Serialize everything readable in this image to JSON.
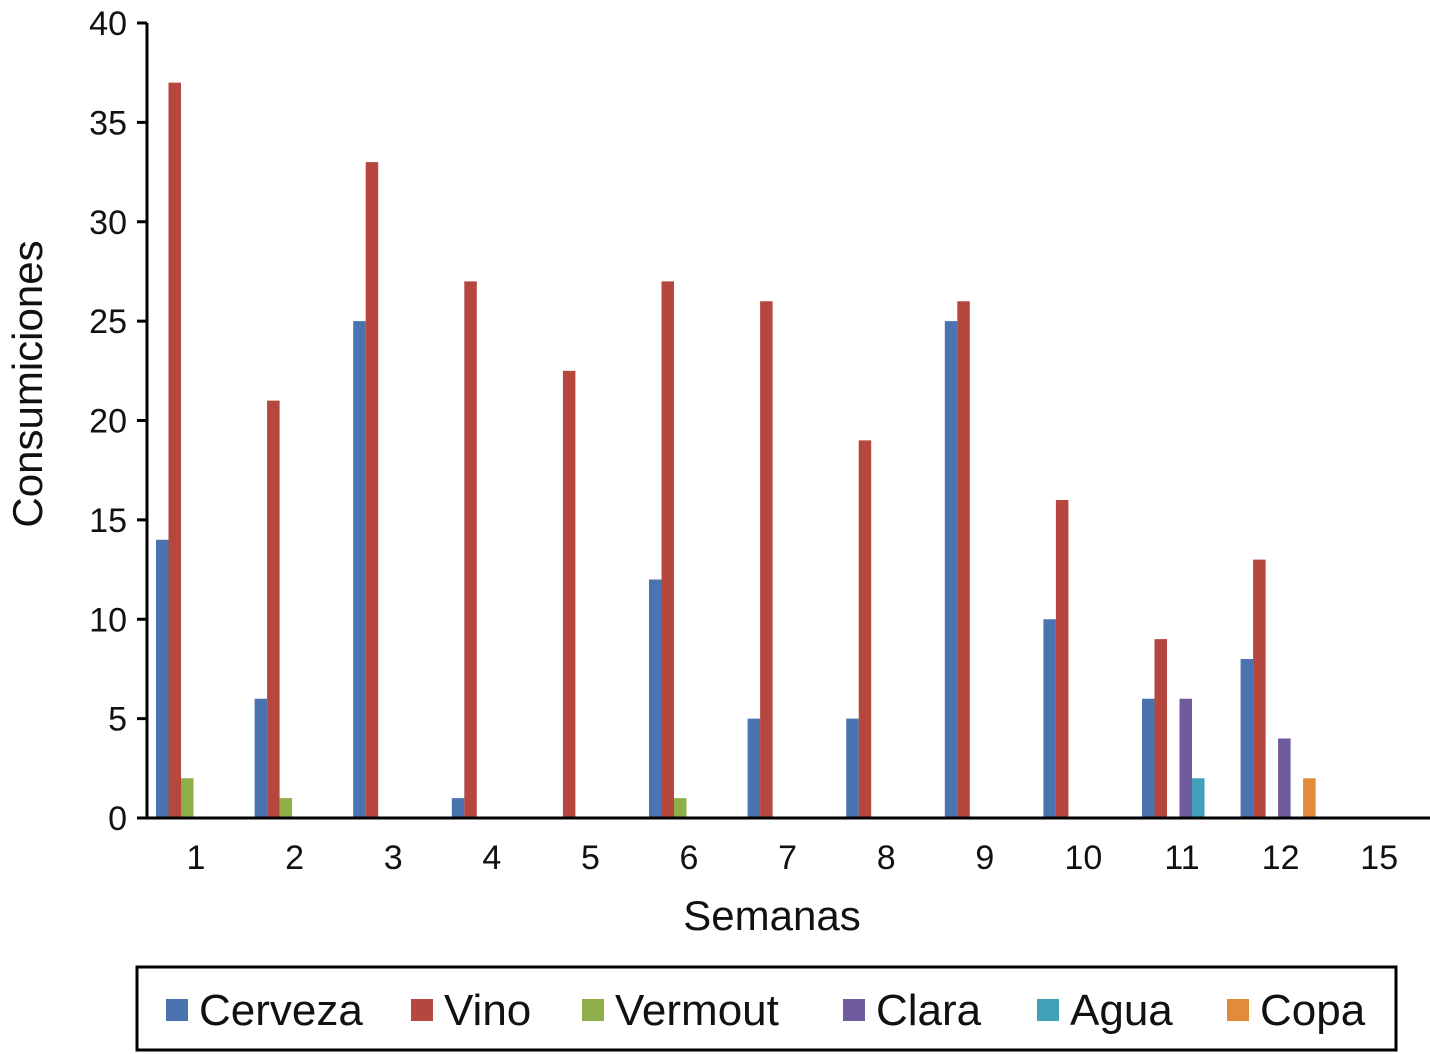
{
  "chart_data": {
    "type": "bar",
    "title": "",
    "xlabel": "Semanas",
    "ylabel": "Consumiciones",
    "categories": [
      "1",
      "2",
      "3",
      "4",
      "5",
      "6",
      "7",
      "8",
      "9",
      "10",
      "11",
      "12",
      "15"
    ],
    "ylim": [
      0,
      40
    ],
    "yticks": [
      "0",
      "5",
      "10",
      "15",
      "20",
      "25",
      "30",
      "35",
      "40"
    ],
    "grid": false,
    "legend_position": "bottom",
    "series": [
      {
        "name": "Cerveza",
        "color": "#4a73b0",
        "values": [
          14,
          6,
          25,
          1,
          0,
          12,
          5,
          5,
          25,
          10,
          6,
          8,
          0
        ]
      },
      {
        "name": "Vino",
        "color": "#b5473f",
        "values": [
          37,
          21,
          33,
          27,
          22.5,
          27,
          26,
          19,
          26,
          16,
          9,
          13,
          0
        ]
      },
      {
        "name": "Vermout",
        "color": "#8eae4a",
        "values": [
          2,
          1,
          0,
          0,
          0,
          1,
          0,
          0,
          0,
          0,
          0,
          0,
          0
        ]
      },
      {
        "name": "Clara",
        "color": "#6f5a9e",
        "values": [
          0,
          0,
          0,
          0,
          0,
          0,
          0,
          0,
          0,
          0,
          6,
          4,
          0
        ]
      },
      {
        "name": "Agua",
        "color": "#3fa0b8",
        "values": [
          0,
          0,
          0,
          0,
          0,
          0,
          0,
          0,
          0,
          0,
          2,
          0,
          0
        ]
      },
      {
        "name": "Copa",
        "color": "#e38a3c",
        "values": [
          0,
          0,
          0,
          0,
          0,
          0,
          0,
          0,
          0,
          0,
          0,
          2,
          0
        ]
      }
    ]
  }
}
